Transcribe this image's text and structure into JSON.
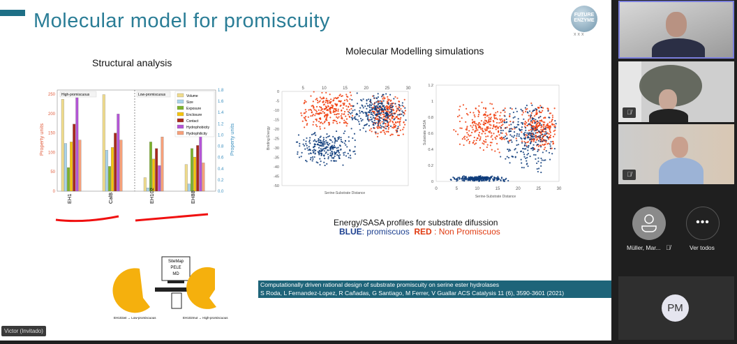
{
  "slide": {
    "title": "Molecular model for promiscuity",
    "logo_text": "FUTURE ENZYME",
    "structural_title": "Structural analysis",
    "modelling_title": "Molecular Modelling simulations",
    "caption_line1": "Energy/SASA profiles for substrate difussion",
    "caption_blue": "BLUE",
    "caption_blue_rest": ": promiscuos",
    "caption_red": "RED",
    "caption_red_rest": " : Non Promiscuos",
    "reference_line1": "Computationally driven rational design of substrate promiscuity on serine ester hydrolases",
    "reference_line2": "S Roda, L Fernandez-Lopez, R Cañadas, G Santiago, M Ferrer, V Guallar ACS Catalysis 11 (6), 3590-3601 (2021)",
    "scheme": {
      "box_lines": [
        "SiteMap",
        "PELE",
        "MD"
      ],
      "left_label": "EH102wt → Low-promiscuous",
      "right_label": "EH102mut → High-promiscuous"
    }
  },
  "presenter_label": "Victor (Invitado)",
  "participants": {
    "muller_name": "Müller, Mar...",
    "see_all": "Ver todos",
    "pm_initials": "PM"
  },
  "colors": {
    "accent": "#1e6f86",
    "blue": "#0d3b7a",
    "red": "#f03c0c"
  },
  "chart_data": [
    {
      "type": "bar",
      "ylabel": "Property units",
      "ylabel_right": "Property units",
      "ylim": [
        0,
        260
      ],
      "ylim_right": [
        0,
        1.8
      ],
      "yticks": [
        0,
        50,
        100,
        150,
        200,
        250
      ],
      "yticks_right": [
        0,
        0.2,
        0.4,
        0.6,
        0.8,
        1.0,
        1.2,
        1.4,
        1.6,
        1.8
      ],
      "categories": [
        "EH1",
        "CalB",
        "EH102",
        "EH88"
      ],
      "group_labels": [
        "High-promiscuous",
        "Low-promiscuous"
      ],
      "series": [
        {
          "name": "Volume",
          "color": "#f0dc8c",
          "axis": "left",
          "values": [
            237,
            249,
            35,
            69
          ]
        },
        {
          "name": "Size",
          "color": "#a8d4ea",
          "axis": "right",
          "values": [
            0.85,
            0.73,
            0.06,
            0.13
          ]
        },
        {
          "name": "Exposure",
          "color": "#7cb32a",
          "axis": "left",
          "values": [
            61,
            64,
            127,
            110
          ]
        },
        {
          "name": "Enclosure",
          "color": "#f6c40c",
          "axis": "left",
          "values": [
            127,
            113,
            83,
            88
          ]
        },
        {
          "name": "Contact",
          "color": "#a8281c",
          "axis": "left",
          "values": [
            173,
            150,
            110,
            118
          ]
        },
        {
          "name": "Hydrophobicity",
          "color": "#b455d6",
          "axis": "left",
          "values": [
            241,
            199,
            66,
            141
          ]
        },
        {
          "name": "Hydrophilicity",
          "color": "#f7a07a",
          "axis": "left",
          "values": [
            132,
            132,
            140,
            73
          ]
        }
      ]
    },
    {
      "type": "scatter",
      "xlabel": "Serine-Substrate Distance",
      "ylabel": "Binding Energy",
      "xlim": [
        0,
        30
      ],
      "ylim": [
        -50,
        0
      ],
      "xticks": [
        5,
        10,
        15,
        20,
        25,
        30
      ],
      "yticks": [
        0,
        -5,
        -10,
        -15,
        -20,
        -25,
        -30,
        -35,
        -40,
        -45,
        -50
      ],
      "series": [
        {
          "name": "Non promiscuous",
          "color": "red",
          "clusters": [
            {
              "x": [
                4,
                18
              ],
              "y": [
                -20,
                0
              ]
            },
            {
              "x": [
                20,
                30
              ],
              "y": [
                -25,
                -2
              ]
            }
          ]
        },
        {
          "name": "Promiscuous",
          "color": "blue",
          "clusters": [
            {
              "x": [
                3,
                18
              ],
              "y": [
                -40,
                -20
              ]
            },
            {
              "x": [
                15,
                30
              ],
              "y": [
                -22,
                0
              ]
            }
          ]
        }
      ]
    },
    {
      "type": "scatter",
      "xlabel": "Serine-Substrate Distance",
      "ylabel": "Substrate SASA",
      "xlim": [
        0,
        30
      ],
      "ylim": [
        0,
        1.2
      ],
      "xticks": [
        0,
        5,
        10,
        15,
        20,
        25,
        30
      ],
      "yticks": [
        0,
        0.2,
        0.4,
        0.6,
        0.8,
        1,
        1.2
      ],
      "series": [
        {
          "name": "Non promiscuous",
          "color": "red",
          "clusters": [
            {
              "x": [
                4,
                20
              ],
              "y": [
                0.35,
                1.0
              ]
            },
            {
              "x": [
                20,
                30
              ],
              "y": [
                0.35,
                1.0
              ]
            }
          ]
        },
        {
          "name": "Promiscuous",
          "color": "blue",
          "clusters": [
            {
              "x": [
                3,
                18
              ],
              "y": [
                0,
                0.07
              ]
            },
            {
              "x": [
                15,
                30
              ],
              "y": [
                0.1,
                1.0
              ]
            }
          ]
        }
      ]
    }
  ]
}
